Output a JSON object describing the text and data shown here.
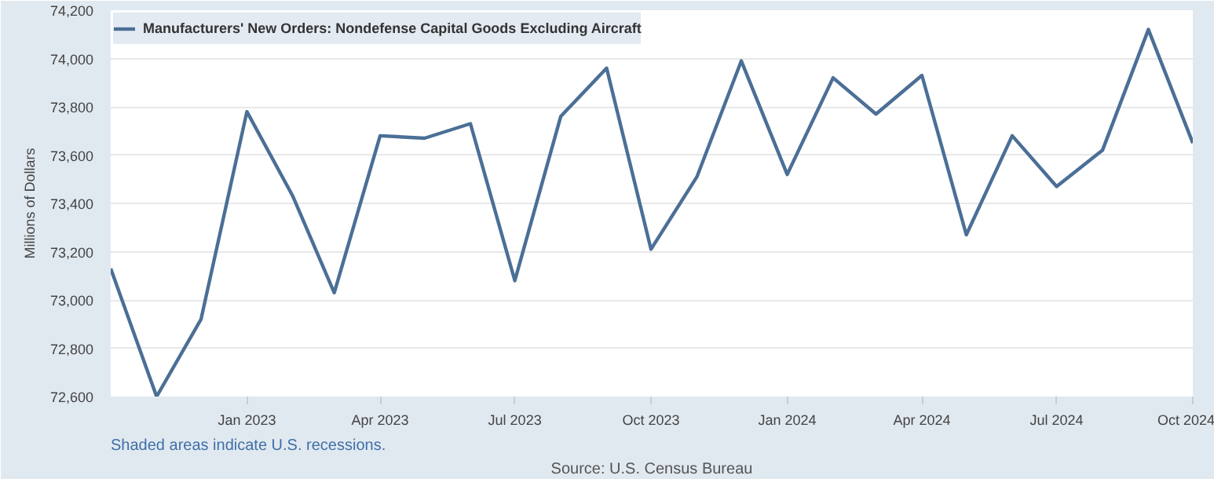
{
  "chart_data": {
    "type": "line",
    "ylabel": "Millions of Dollars",
    "x": [
      "2022-10",
      "2022-11",
      "2022-12",
      "2023-01",
      "2023-02",
      "2023-03",
      "2023-04",
      "2023-05",
      "2023-06",
      "2023-07",
      "2023-08",
      "2023-09",
      "2023-10",
      "2023-11",
      "2023-12",
      "2024-01",
      "2024-02",
      "2024-03",
      "2024-04",
      "2024-05",
      "2024-06",
      "2024-07",
      "2024-08",
      "2024-09",
      "2024-10"
    ],
    "series": [
      {
        "name": "Manufacturers' New Orders: Nondefense Capital Goods Excluding Aircraft",
        "color": "#4b6f96",
        "values": [
          73130,
          72600,
          72920,
          73780,
          73430,
          73030,
          73680,
          73670,
          73730,
          73080,
          73760,
          73960,
          73210,
          73510,
          73990,
          73520,
          73920,
          73770,
          73930,
          73270,
          73680,
          73470,
          73620,
          74120,
          73650
        ]
      }
    ],
    "xlim": [
      "2022-10",
      "2024-10"
    ],
    "xticks": [
      {
        "value": "2023-01",
        "label": "Jan 2023"
      },
      {
        "value": "2023-04",
        "label": "Apr 2023"
      },
      {
        "value": "2023-07",
        "label": "Jul 2023"
      },
      {
        "value": "2023-10",
        "label": "Oct 2023"
      },
      {
        "value": "2024-01",
        "label": "Jan 2024"
      },
      {
        "value": "2024-04",
        "label": "Apr 2024"
      },
      {
        "value": "2024-07",
        "label": "Jul 2024"
      },
      {
        "value": "2024-10",
        "label": "Oct 2024"
      }
    ],
    "ylim": [
      72600,
      74200
    ],
    "yticks": [
      {
        "value": 72600,
        "label": "72,600"
      },
      {
        "value": 72800,
        "label": "72,800"
      },
      {
        "value": 73000,
        "label": "73,000"
      },
      {
        "value": 73200,
        "label": "73,200"
      },
      {
        "value": 73400,
        "label": "73,400"
      },
      {
        "value": 73600,
        "label": "73,600"
      },
      {
        "value": 73800,
        "label": "73,800"
      },
      {
        "value": 74000,
        "label": "74,000"
      },
      {
        "value": 74200,
        "label": "74,200"
      }
    ],
    "grid": "y",
    "legend": "top left",
    "marker": "none",
    "line_style": "solid",
    "annotations": [
      "Shaded areas indicate U.S. recessions.",
      "Source: U.S. Census Bureau"
    ]
  }
}
